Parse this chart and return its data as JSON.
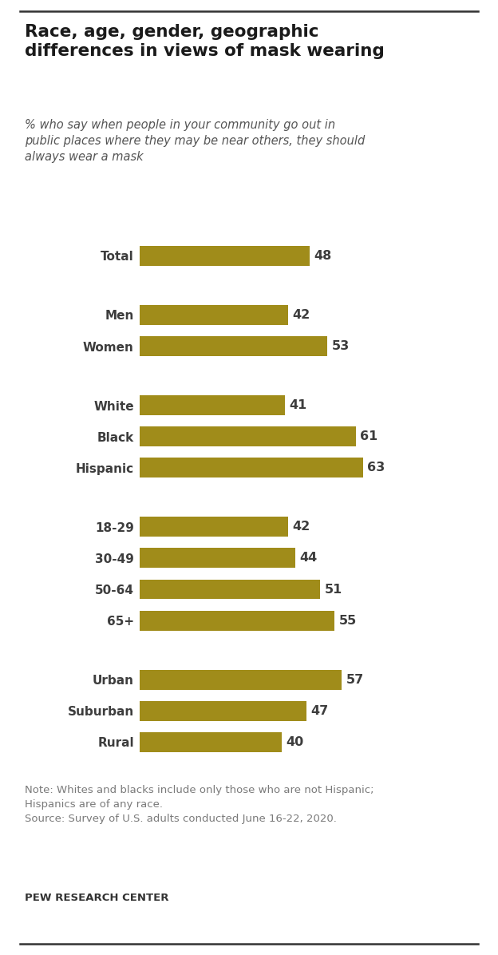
{
  "title": "Race, age, gender, geographic\ndifferences in views of mask wearing",
  "subtitle": "% who say when people in your community go out in\npublic places where they may be near others, they should\nalways wear a mask",
  "categories": [
    "Total",
    "Men",
    "Women",
    "White",
    "Black",
    "Hispanic",
    "18-29",
    "30-49",
    "50-64",
    "65+",
    "Urban",
    "Suburban",
    "Rural"
  ],
  "values": [
    48,
    42,
    53,
    41,
    61,
    63,
    42,
    44,
    51,
    55,
    57,
    47,
    40
  ],
  "bar_color": "#A08C1A",
  "label_color": "#3d3d3d",
  "value_color": "#3d3d3d",
  "note_text": "Note: Whites and blacks include only those who are not Hispanic;\nHispanics are of any race.\nSource: Survey of U.S. adults conducted June 16-22, 2020.",
  "source_label": "PEW RESEARCH CENTER",
  "note_color": "#7a7a7a",
  "source_color": "#333333",
  "title_color": "#1a1a1a",
  "subtitle_color": "#555555",
  "background_color": "#ffffff",
  "top_line_color": "#333333",
  "bottom_line_color": "#333333",
  "xlim": [
    0,
    80
  ]
}
